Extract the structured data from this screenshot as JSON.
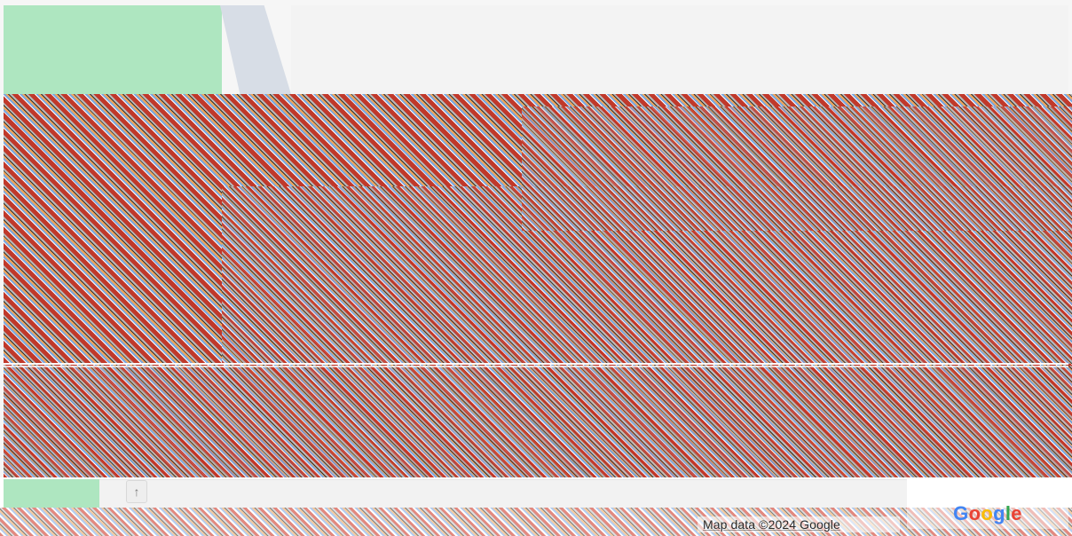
{
  "map": {
    "attribution_text": "Map data ©2024 Google",
    "logo": {
      "text": "Google",
      "letters": [
        "G",
        "o",
        "o",
        "g",
        "l",
        "e"
      ],
      "letter_colors": [
        "#4285F4",
        "#EA4335",
        "#FBBC05",
        "#4285F4",
        "#34A853",
        "#EA4335"
      ]
    },
    "icons": {
      "pan_up": "up-arrow-icon"
    }
  }
}
